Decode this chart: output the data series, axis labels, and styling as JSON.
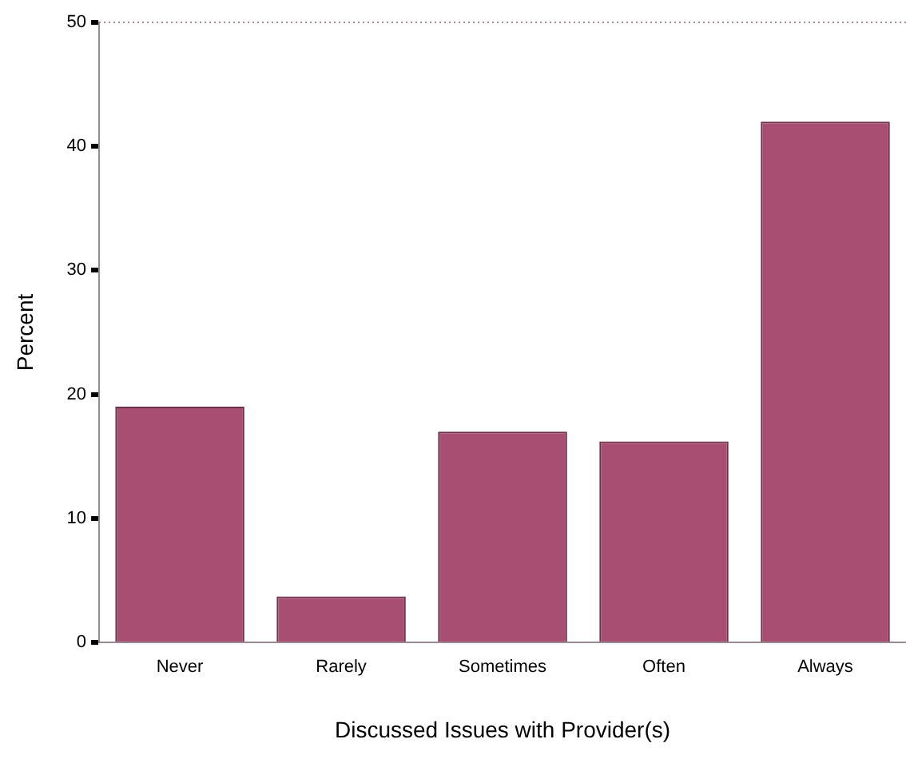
{
  "chart_data": {
    "type": "bar",
    "xlabel": "Discussed Issues with Provider(s)",
    "ylabel": "Percent",
    "categories": [
      "Never",
      "Rarely",
      "Sometimes",
      "Often",
      "Always"
    ],
    "values": [
      19,
      3.7,
      17,
      16.2,
      42
    ],
    "color": "#a84e72",
    "ylim": [
      0,
      50
    ],
    "yticks": [
      0,
      10,
      20,
      30,
      40,
      50
    ],
    "grid": false,
    "legend": false
  }
}
